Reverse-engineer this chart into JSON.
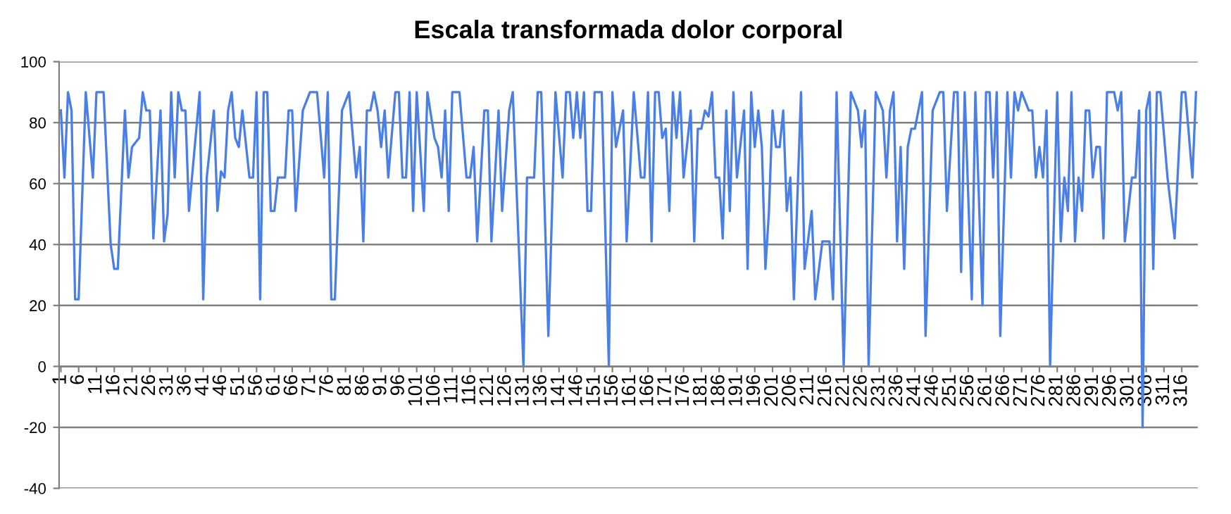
{
  "chart_data": {
    "type": "line",
    "title": "Escala transformada dolor corporal",
    "x": [
      1,
      2,
      3,
      4,
      5,
      6,
      8,
      10,
      11,
      13,
      15,
      16,
      17,
      19,
      20,
      21,
      23,
      24,
      25,
      26,
      27,
      29,
      30,
      31,
      32,
      33,
      34,
      35,
      36,
      37,
      40,
      41,
      42,
      44,
      45,
      46,
      47,
      48,
      49,
      50,
      51,
      52,
      54,
      55,
      56,
      57,
      58,
      59,
      60,
      61,
      62,
      64,
      65,
      66,
      67,
      69,
      71,
      73,
      75,
      76,
      77,
      78,
      80,
      82,
      84,
      85,
      86,
      87,
      88,
      89,
      90,
      91,
      92,
      93,
      95,
      96,
      97,
      98,
      99,
      100,
      101,
      103,
      104,
      106,
      107,
      108,
      109,
      110,
      111,
      113,
      115,
      116,
      117,
      118,
      120,
      121,
      122,
      124,
      125,
      127,
      128,
      131,
      132,
      134,
      135,
      136,
      138,
      140,
      142,
      143,
      144,
      145,
      146,
      147,
      148,
      149,
      150,
      151,
      153,
      155,
      156,
      157,
      159,
      160,
      162,
      164,
      165,
      166,
      167,
      168,
      169,
      170,
      171,
      172,
      173,
      174,
      175,
      176,
      178,
      179,
      180,
      181,
      182,
      183,
      184,
      185,
      186,
      187,
      188,
      189,
      190,
      191,
      193,
      194,
      195,
      196,
      197,
      198,
      199,
      200,
      201,
      202,
      203,
      204,
      205,
      206,
      207,
      209,
      210,
      212,
      213,
      215,
      216,
      217,
      218,
      219,
      221,
      223,
      225,
      226,
      227,
      228,
      230,
      232,
      233,
      234,
      235,
      236,
      237,
      238,
      239,
      240,
      241,
      242,
      243,
      244,
      246,
      248,
      249,
      250,
      252,
      253,
      254,
      255,
      257,
      258,
      260,
      261,
      262,
      263,
      264,
      265,
      267,
      268,
      269,
      270,
      271,
      273,
      274,
      275,
      276,
      277,
      278,
      279,
      281,
      282,
      283,
      284,
      285,
      286,
      287,
      288,
      289,
      290,
      291,
      292,
      293,
      294,
      295,
      297,
      298,
      299,
      300,
      302,
      303,
      304,
      305,
      306,
      307,
      308,
      309,
      310,
      312,
      314,
      316,
      317,
      319,
      320
    ],
    "series": [
      {
        "color": "#4a7fe8",
        "values": [
          84,
          62,
          90,
          84,
          22,
          22,
          90,
          62,
          90,
          90,
          40,
          32,
          32,
          84,
          62,
          72,
          75,
          90,
          84,
          84,
          42,
          84,
          41,
          50,
          90,
          62,
          90,
          84,
          84,
          51,
          90,
          22,
          62,
          84,
          51,
          64,
          62,
          84,
          90,
          75,
          72,
          84,
          62,
          62,
          90,
          22,
          90,
          90,
          51,
          51,
          62,
          62,
          84,
          84,
          51,
          84,
          90,
          90,
          62,
          90,
          22,
          22,
          84,
          90,
          62,
          72,
          41,
          84,
          84,
          90,
          84,
          72,
          84,
          62,
          90,
          90,
          62,
          62,
          90,
          51,
          90,
          51,
          90,
          75,
          72,
          62,
          84,
          51,
          90,
          90,
          62,
          62,
          72,
          41,
          84,
          84,
          41,
          84,
          51,
          84,
          90,
          0,
          62,
          62,
          90,
          90,
          10,
          90,
          62,
          90,
          90,
          75,
          90,
          75,
          90,
          51,
          51,
          90,
          90,
          0,
          90,
          72,
          84,
          41,
          90,
          62,
          62,
          90,
          41,
          90,
          90,
          75,
          78,
          51,
          90,
          75,
          90,
          62,
          84,
          41,
          78,
          78,
          84,
          82,
          90,
          62,
          62,
          42,
          84,
          51,
          90,
          62,
          84,
          32,
          90,
          72,
          84,
          72,
          32,
          51,
          84,
          72,
          72,
          84,
          51,
          62,
          22,
          90,
          32,
          51,
          22,
          41,
          41,
          41,
          22,
          90,
          0,
          90,
          84,
          72,
          84,
          0,
          90,
          84,
          62,
          84,
          90,
          41,
          72,
          32,
          72,
          78,
          78,
          84,
          90,
          10,
          84,
          90,
          90,
          51,
          90,
          90,
          31,
          90,
          22,
          90,
          20,
          90,
          90,
          62,
          90,
          10,
          90,
          62,
          90,
          84,
          90,
          84,
          84,
          62,
          72,
          62,
          84,
          0,
          90,
          41,
          62,
          51,
          90,
          41,
          62,
          51,
          84,
          84,
          62,
          72,
          72,
          42,
          90,
          90,
          84,
          90,
          41,
          62,
          62,
          84,
          -20,
          84,
          90,
          32,
          90,
          90,
          62,
          42,
          90,
          90,
          62,
          90
        ]
      }
    ],
    "xlim": [
      0.5,
      320.5
    ],
    "xticks": [
      1,
      6,
      11,
      16,
      21,
      26,
      31,
      36,
      41,
      46,
      51,
      56,
      61,
      66,
      71,
      76,
      81,
      86,
      91,
      96,
      101,
      106,
      111,
      116,
      121,
      126,
      131,
      136,
      141,
      146,
      151,
      156,
      161,
      166,
      171,
      176,
      181,
      186,
      191,
      196,
      201,
      206,
      211,
      216,
      221,
      226,
      231,
      236,
      241,
      246,
      251,
      256,
      261,
      266,
      271,
      276,
      281,
      286,
      291,
      296,
      301,
      306,
      311,
      316
    ],
    "ylim": [
      -40,
      100
    ],
    "yticks": [
      -40,
      -20,
      0,
      20,
      40,
      60,
      80,
      100
    ],
    "grid": "y",
    "legend": false,
    "marker": "none",
    "line_style": "solid"
  }
}
